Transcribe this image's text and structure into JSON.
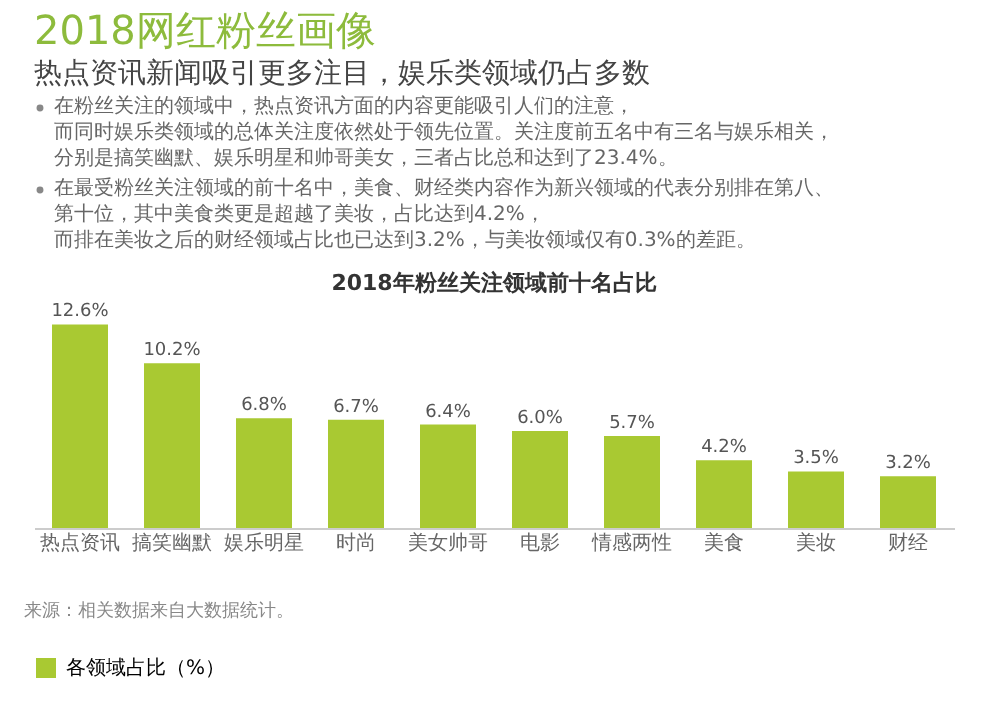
{
  "chart_data": {
    "type": "bar",
    "title": "2018网红粉丝画像",
    "subtitle": "热点资讯新闻吸引更多注目，娱乐类领域仍占多数",
    "annotations": [
      "在粉丝关注的领域中，热点资讯方面的内容更能吸引人们的注意，而同时娱乐类领域的总体关注度依然处于领先位置。关注度前五名中有三名与娱乐相关，分别是搞笑幽默、娱乐明星和帅哥美女，三者占比总和达到了23.4%。",
      "在最受粉丝关注领域的前十名中，美食、财经类内容作为新兴领域的代表分别排在第八、第十位，其中美食类更是超越了美妆，占比达到4.2%，而排在美妆之后的财经领域占比也已达到3.2%，与美妆领域仅有0.3%的差距。",
      "2018年粉丝关注领域前十名占比",
      "来源：相关数据来自大数据统计。"
    ],
    "categories": [
      "热点资讯",
      "搞笑幽默",
      "娱乐明星",
      "时尚",
      "美女帅哥",
      "电影",
      "情感两性",
      "美食",
      "美妆",
      "财经"
    ],
    "series": [
      {
        "name": "各领域占比（%）",
        "color": "#a9c932",
        "values": [
          12.6,
          10.2,
          6.8,
          6.7,
          6.4,
          6.0,
          5.7,
          4.2,
          3.5,
          3.2
        ],
        "value_labels": [
          "12.6%",
          "10.2%",
          "6.8%",
          "6.7%",
          "6.4%",
          "6.0%",
          "5.7%",
          "4.2%",
          "3.5%",
          "3.2%"
        ]
      }
    ],
    "tick_labels": "x",
    "grid": false,
    "legend": "bottom"
  }
}
